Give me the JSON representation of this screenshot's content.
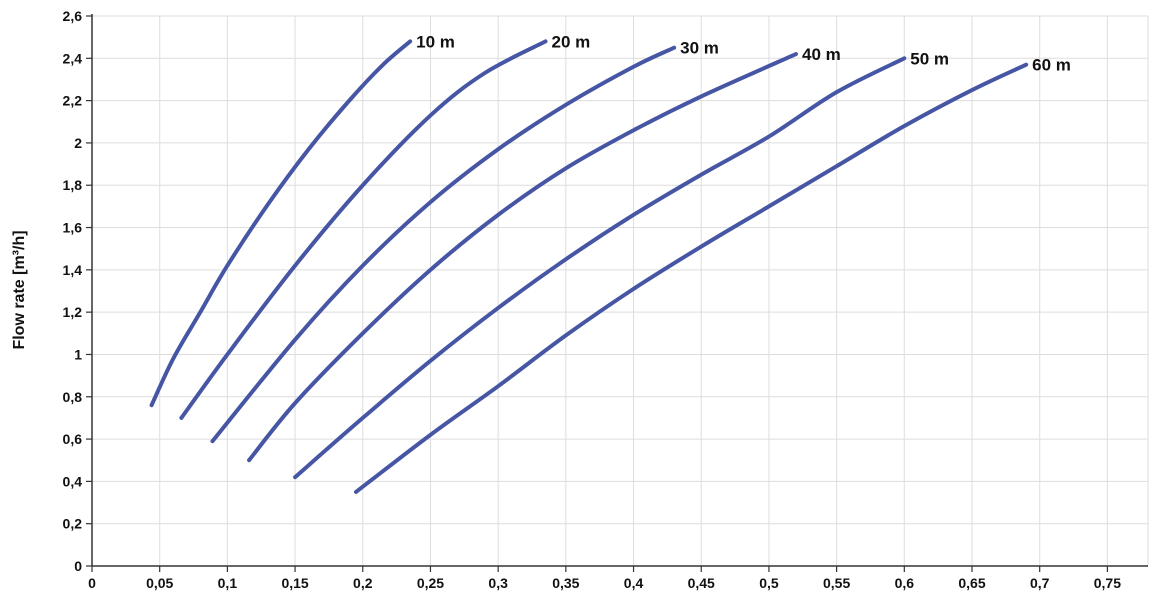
{
  "chart_data": {
    "type": "line",
    "title": "",
    "xlabel": "",
    "ylabel": "Flow rate [m³/h]",
    "xlim": [
      0,
      0.78
    ],
    "ylim": [
      0,
      2.6
    ],
    "grid": true,
    "line_color": "#4656a4",
    "x_ticks": [
      {
        "value": 0,
        "label": "0"
      },
      {
        "value": 0.05,
        "label": "0,05"
      },
      {
        "value": 0.1,
        "label": "0,1"
      },
      {
        "value": 0.15,
        "label": "0,15"
      },
      {
        "value": 0.2,
        "label": "0,2"
      },
      {
        "value": 0.25,
        "label": "0,25"
      },
      {
        "value": 0.3,
        "label": "0,3"
      },
      {
        "value": 0.35,
        "label": "0,35"
      },
      {
        "value": 0.4,
        "label": "0,4"
      },
      {
        "value": 0.45,
        "label": "0,45"
      },
      {
        "value": 0.5,
        "label": "0,5"
      },
      {
        "value": 0.55,
        "label": "0,55"
      },
      {
        "value": 0.6,
        "label": "0,6"
      },
      {
        "value": 0.65,
        "label": "0,65"
      },
      {
        "value": 0.7,
        "label": "0,7"
      },
      {
        "value": 0.75,
        "label": "0,75"
      }
    ],
    "y_ticks": [
      {
        "value": 0,
        "label": "0"
      },
      {
        "value": 0.2,
        "label": "0,2"
      },
      {
        "value": 0.4,
        "label": "0,4"
      },
      {
        "value": 0.6,
        "label": "0,6"
      },
      {
        "value": 0.8,
        "label": "0,8"
      },
      {
        "value": 1.0,
        "label": "1"
      },
      {
        "value": 1.2,
        "label": "1,2"
      },
      {
        "value": 1.4,
        "label": "1,4"
      },
      {
        "value": 1.6,
        "label": "1,6"
      },
      {
        "value": 1.8,
        "label": "1,8"
      },
      {
        "value": 2.0,
        "label": "2"
      },
      {
        "value": 2.2,
        "label": "2,2"
      },
      {
        "value": 2.4,
        "label": "2,4"
      },
      {
        "value": 2.6,
        "label": "2,6"
      }
    ],
    "series": [
      {
        "name": "10 m",
        "x": [
          0.044,
          0.06,
          0.08,
          0.1,
          0.13,
          0.16,
          0.19,
          0.215,
          0.235
        ],
        "y": [
          0.76,
          0.98,
          1.2,
          1.42,
          1.71,
          1.97,
          2.2,
          2.37,
          2.48
        ]
      },
      {
        "name": "20 m",
        "x": [
          0.066,
          0.1,
          0.15,
          0.2,
          0.25,
          0.29,
          0.335
        ],
        "y": [
          0.7,
          1.0,
          1.42,
          1.8,
          2.13,
          2.33,
          2.48
        ]
      },
      {
        "name": "30 m",
        "x": [
          0.089,
          0.15,
          0.2,
          0.25,
          0.3,
          0.35,
          0.4,
          0.43
        ],
        "y": [
          0.59,
          1.07,
          1.42,
          1.72,
          1.97,
          2.18,
          2.36,
          2.45
        ]
      },
      {
        "name": "40 m",
        "x": [
          0.116,
          0.15,
          0.2,
          0.25,
          0.3,
          0.35,
          0.4,
          0.45,
          0.52
        ],
        "y": [
          0.5,
          0.77,
          1.1,
          1.4,
          1.66,
          1.88,
          2.06,
          2.22,
          2.42
        ]
      },
      {
        "name": "50 m",
        "x": [
          0.15,
          0.2,
          0.25,
          0.3,
          0.35,
          0.4,
          0.45,
          0.5,
          0.55,
          0.6
        ],
        "y": [
          0.42,
          0.7,
          0.97,
          1.22,
          1.45,
          1.66,
          1.85,
          2.03,
          2.24,
          2.4
        ]
      },
      {
        "name": "60 m",
        "x": [
          0.195,
          0.25,
          0.3,
          0.35,
          0.4,
          0.45,
          0.5,
          0.55,
          0.6,
          0.65,
          0.69
        ],
        "y": [
          0.35,
          0.62,
          0.85,
          1.09,
          1.31,
          1.51,
          1.7,
          1.89,
          2.08,
          2.25,
          2.37
        ]
      }
    ]
  }
}
